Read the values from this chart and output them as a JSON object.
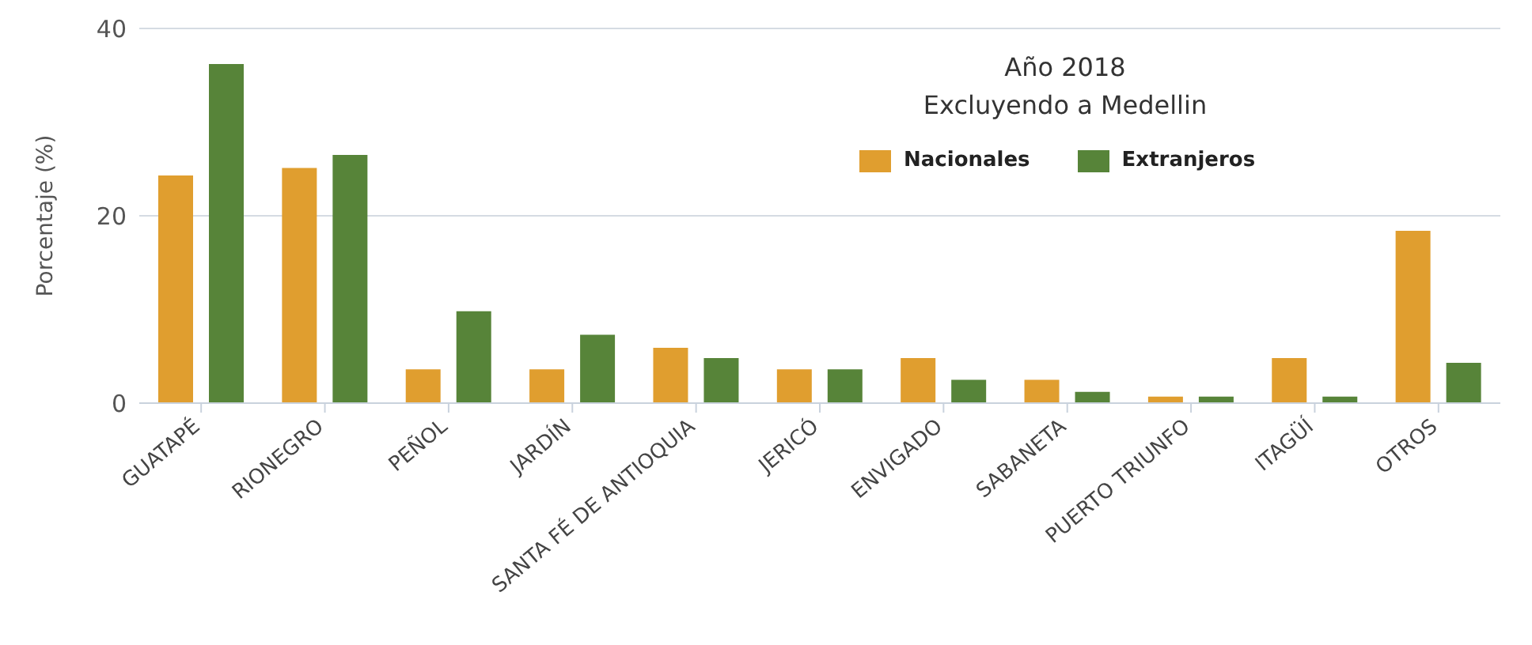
{
  "chart_data": {
    "type": "bar",
    "title": "Año 2018",
    "subtitle": "Excluyendo a Medellin",
    "ylabel": "Porcentaje (%)",
    "categories": [
      "GUATAPÉ",
      "RIONEGRO",
      "PEÑOL",
      "JARDÍN",
      "SANTA FÉ DE ANTIOQUIA",
      "JERICÓ",
      "ENVIGADO",
      "SABANETA",
      "PUERTO TRIUNFO",
      "ITAGÜÍ",
      "OTROS"
    ],
    "series": [
      {
        "name": "Nacionales",
        "color": "#e09e2f",
        "values": [
          24.3,
          25.1,
          3.6,
          3.6,
          5.9,
          3.6,
          4.8,
          2.5,
          0.7,
          4.8,
          18.4
        ]
      },
      {
        "name": "Extranjeros",
        "color": "#578439",
        "values": [
          36.2,
          26.5,
          9.8,
          7.3,
          4.8,
          3.6,
          2.5,
          1.2,
          0.7,
          0.7,
          4.3
        ]
      }
    ],
    "ylim": [
      0,
      40
    ],
    "yticks": [
      0,
      20,
      40
    ],
    "grid": "y",
    "legend": "top right"
  }
}
